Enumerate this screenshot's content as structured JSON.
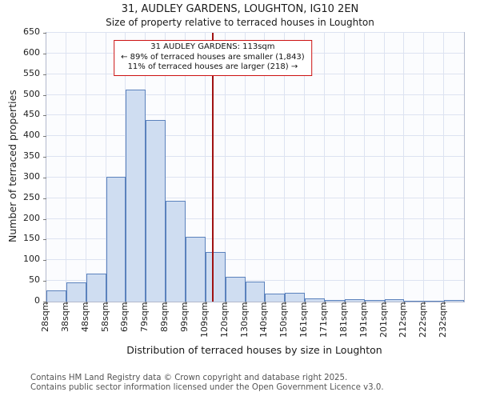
{
  "annotation": {
    "line1": "31 AUDLEY GARDENS: 113sqm",
    "line2": "← 89% of terraced houses are smaller (1,843)",
    "line3": "11% of terraced houses are larger (218) →"
  },
  "footer": {
    "line1": "Contains HM Land Registry data © Crown copyright and database right 2025.",
    "line2": "Contains public sector information licensed under the Open Government Licence v3.0."
  },
  "chart_data": {
    "type": "bar",
    "title": "31, AUDLEY GARDENS, LOUGHTON, IG10 2EN",
    "subtitle": "Size of property relative to terraced houses in Loughton",
    "xlabel": "Distribution of terraced houses by size in Loughton",
    "ylabel": "Number of terraced properties",
    "categories": [
      "28sqm",
      "38sqm",
      "48sqm",
      "58sqm",
      "69sqm",
      "79sqm",
      "89sqm",
      "99sqm",
      "109sqm",
      "120sqm",
      "130sqm",
      "140sqm",
      "150sqm",
      "161sqm",
      "171sqm",
      "181sqm",
      "191sqm",
      "201sqm",
      "212sqm",
      "222sqm",
      "232sqm"
    ],
    "values": [
      27,
      47,
      68,
      302,
      513,
      440,
      243,
      157,
      120,
      60,
      49,
      20,
      21,
      8,
      3,
      5,
      3,
      5,
      2,
      1,
      3
    ],
    "ylim": [
      0,
      650
    ],
    "ytick_step": 50,
    "grid": true,
    "legend": "none",
    "marker": {
      "value": 113,
      "label": "113sqm",
      "color": "#a01212"
    },
    "colors": {
      "bar_fill": "#cfddf1",
      "bar_border": "#5b82bd",
      "grid": "#dde3f1",
      "marker_line": "#a01212",
      "annotation_border": "#cc1111"
    }
  }
}
